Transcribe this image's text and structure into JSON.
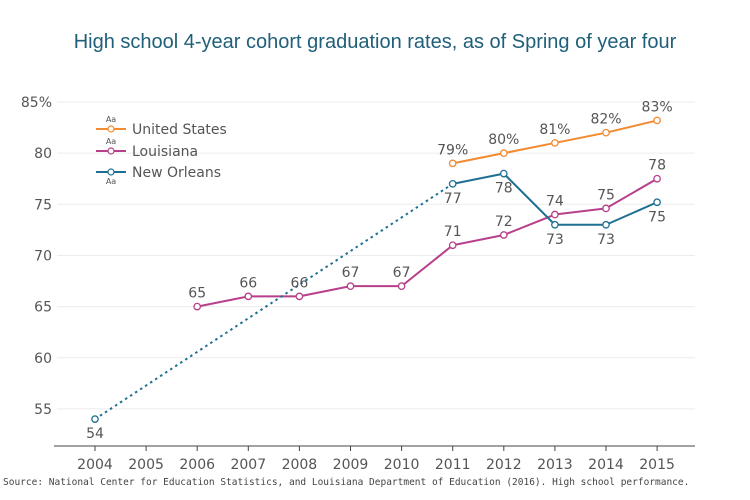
{
  "chart_data": {
    "type": "line",
    "title": "High school 4-year cohort graduation rates, as of Spring of year four",
    "xlabel": "",
    "ylabel": "",
    "x": [
      2004,
      2005,
      2006,
      2007,
      2008,
      2009,
      2010,
      2011,
      2012,
      2013,
      2014,
      2015
    ],
    "x_tick_labels": [
      "2004",
      "2005",
      "2006",
      "2007",
      "2008",
      "2009",
      "2010",
      "2011",
      "2012",
      "2013",
      "2014",
      "2015"
    ],
    "y_ticks": [
      55,
      60,
      65,
      70,
      75,
      80,
      85
    ],
    "y_tick_labels": [
      "55",
      "60",
      "65",
      "70",
      "75",
      "80",
      "85%"
    ],
    "ylim": [
      51,
      86
    ],
    "grid": "horizontal",
    "legend_position": "top-left",
    "series": [
      {
        "name": "United States",
        "color": "#f28a30",
        "legend_aa_position": "above",
        "points": [
          {
            "x": 2011,
            "y": 79,
            "label": "79%",
            "label_pos": "above"
          },
          {
            "x": 2012,
            "y": 80,
            "label": "80%",
            "label_pos": "above"
          },
          {
            "x": 2013,
            "y": 81,
            "label": "81%",
            "label_pos": "above"
          },
          {
            "x": 2014,
            "y": 82,
            "label": "82%",
            "label_pos": "above"
          },
          {
            "x": 2015,
            "y": 83.2,
            "label": "83%",
            "label_pos": "above"
          }
        ]
      },
      {
        "name": "Louisiana",
        "color": "#b83f8a",
        "legend_aa_position": "above",
        "points": [
          {
            "x": 2006,
            "y": 65,
            "label": "65",
            "label_pos": "above"
          },
          {
            "x": 2007,
            "y": 66,
            "label": "66",
            "label_pos": "above"
          },
          {
            "x": 2008,
            "y": 66,
            "label": "66",
            "label_pos": "above"
          },
          {
            "x": 2009,
            "y": 67,
            "label": "67",
            "label_pos": "above"
          },
          {
            "x": 2010,
            "y": 67,
            "label": "67",
            "label_pos": "above"
          },
          {
            "x": 2011,
            "y": 71,
            "label": "71",
            "label_pos": "above"
          },
          {
            "x": 2012,
            "y": 72,
            "label": "72",
            "label_pos": "above"
          },
          {
            "x": 2013,
            "y": 74,
            "label": "74",
            "label_pos": "above"
          },
          {
            "x": 2014,
            "y": 74.6,
            "label": "75",
            "label_pos": "above"
          },
          {
            "x": 2015,
            "y": 77.5,
            "label": "78",
            "label_pos": "above"
          }
        ]
      },
      {
        "name": "New Orleans",
        "color": "#1f6f93",
        "legend_aa_position": "below",
        "dotted_segments": [
          [
            2004,
            2011
          ]
        ],
        "points": [
          {
            "x": 2004,
            "y": 54,
            "label": "54",
            "label_pos": "below"
          },
          {
            "x": 2011,
            "y": 77,
            "label": "77",
            "label_pos": "below"
          },
          {
            "x": 2012,
            "y": 78,
            "label": "78",
            "label_pos": "below"
          },
          {
            "x": 2013,
            "y": 73,
            "label": "73",
            "label_pos": "below"
          },
          {
            "x": 2014,
            "y": 73,
            "label": "73",
            "label_pos": "below"
          },
          {
            "x": 2015,
            "y": 75.2,
            "label": "75",
            "label_pos": "below"
          }
        ]
      }
    ],
    "legend_sample_text": "Aa"
  },
  "source_note": "Source: National Center for Education Statistics, and Louisiana Department of Education (2016). High school performance."
}
